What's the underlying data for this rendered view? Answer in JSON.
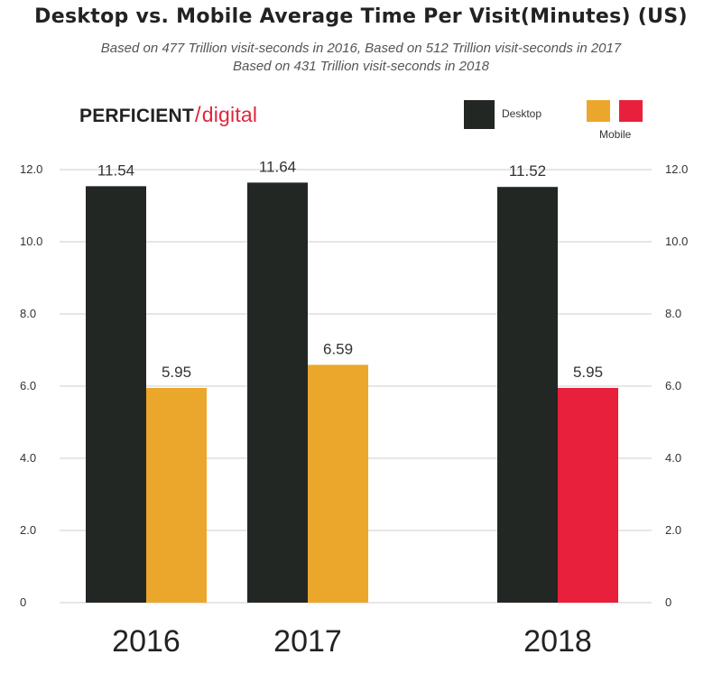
{
  "title": "Desktop vs. Mobile Average Time Per Visit(Minutes) (US)",
  "subtitle_line1": "Based on 477 Trillion visit-seconds in 2016, Based on 512 Trillion visit-seconds in 2017",
  "subtitle_line2": "Based on 431 Trillion visit-seconds in 2018",
  "logo": {
    "primary": "PERFICIENT",
    "slash": "/",
    "secondary": "digital"
  },
  "legend": [
    {
      "label": "Desktop",
      "colors": [
        "#222724"
      ]
    },
    {
      "label": "Mobile",
      "colors": [
        "#eba72c",
        "#e8203c"
      ]
    }
  ],
  "chart_data": {
    "type": "bar",
    "title": "Desktop vs. Mobile Average Time Per Visit(Minutes) (US)",
    "categories": [
      "2016",
      "2017",
      "2018"
    ],
    "series": [
      {
        "name": "Desktop",
        "values": [
          11.54,
          11.64,
          11.52
        ],
        "colors": [
          "#222724",
          "#222724",
          "#222724"
        ],
        "labels": [
          "11.54",
          "11.64",
          "11.52"
        ]
      },
      {
        "name": "Mobile",
        "values": [
          5.95,
          6.59,
          5.95
        ],
        "colors": [
          "#eba72c",
          "#eba72c",
          "#e8203c"
        ],
        "labels": [
          "5.95",
          "6.59",
          "5.95"
        ]
      }
    ],
    "ylim": [
      0,
      12
    ],
    "yticks": [
      0,
      2,
      4,
      6,
      8,
      10,
      12
    ],
    "ytick_labels": [
      "0",
      "2.0",
      "4.0",
      "6.0",
      "8.0",
      "10.0",
      "12.0"
    ],
    "axes": "left and right",
    "grid": true,
    "legend_position": "top-right"
  }
}
